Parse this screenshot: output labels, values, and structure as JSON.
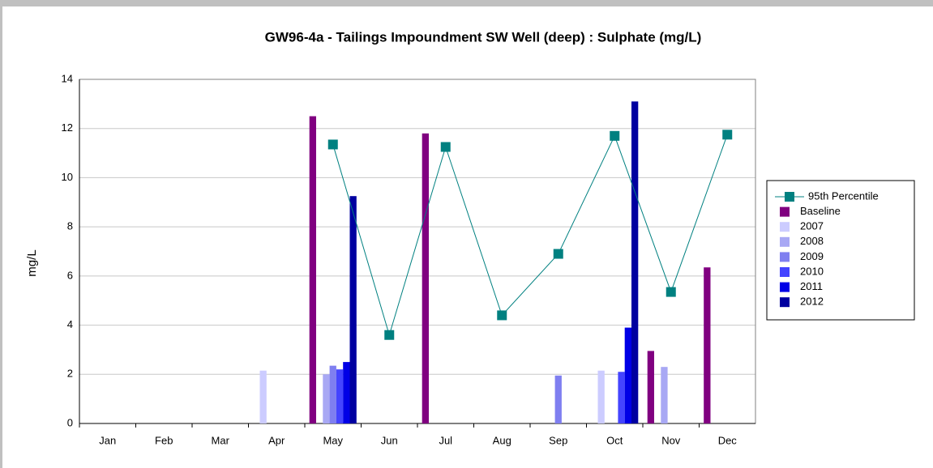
{
  "chart_data": {
    "type": "bar",
    "title": "GW96-4a - Tailings Impoundment SW Well (deep) : Sulphate (mg/L)",
    "y_label": "mg/L",
    "categories": [
      "Jan",
      "Feb",
      "Mar",
      "Apr",
      "May",
      "Jun",
      "Jul",
      "Aug",
      "Sep",
      "Oct",
      "Nov",
      "Dec"
    ],
    "ylim": [
      0,
      14
    ],
    "yticks": [
      0,
      2,
      4,
      6,
      8,
      10,
      12,
      14
    ],
    "grid": true,
    "series": [
      {
        "name": "95th Percentile",
        "type": "line",
        "color": "#008080",
        "values": [
          null,
          null,
          null,
          null,
          11.35,
          3.6,
          11.25,
          4.4,
          6.9,
          11.7,
          5.35,
          11.75
        ]
      },
      {
        "name": "Baseline",
        "color": "#800080",
        "values": [
          null,
          null,
          null,
          null,
          12.5,
          null,
          11.8,
          null,
          null,
          null,
          2.95,
          6.35
        ]
      },
      {
        "name": "2007",
        "color": "#ccccff",
        "values": [
          null,
          null,
          null,
          2.15,
          null,
          null,
          null,
          null,
          null,
          2.15,
          null,
          null
        ]
      },
      {
        "name": "2008",
        "color": "#a8a8f4",
        "values": [
          null,
          null,
          null,
          null,
          2.0,
          null,
          null,
          null,
          null,
          null,
          2.3,
          null
        ]
      },
      {
        "name": "2009",
        "color": "#7f7ff0",
        "values": [
          null,
          null,
          null,
          null,
          2.35,
          null,
          null,
          null,
          1.95,
          null,
          null,
          null
        ]
      },
      {
        "name": "2010",
        "color": "#4444ff",
        "values": [
          null,
          null,
          null,
          null,
          2.2,
          null,
          null,
          null,
          null,
          2.1,
          null,
          null
        ]
      },
      {
        "name": "2011",
        "color": "#0000e6",
        "values": [
          null,
          null,
          null,
          null,
          2.5,
          null,
          null,
          null,
          null,
          3.9,
          null,
          null
        ]
      },
      {
        "name": "2012",
        "color": "#0000a0",
        "values": [
          null,
          null,
          null,
          null,
          9.25,
          null,
          null,
          null,
          null,
          13.1,
          null,
          null
        ]
      }
    ]
  }
}
